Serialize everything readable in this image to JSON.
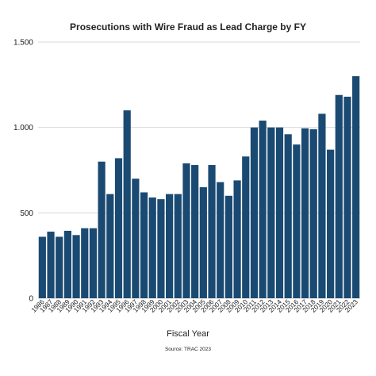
{
  "chart_data": {
    "type": "bar",
    "title": "Prosecutions with Wire Fraud as Lead Charge by FY",
    "xlabel": "Fiscal Year",
    "ylabel": "",
    "source": "Source: TRAC 2023",
    "ylim": [
      0,
      1500
    ],
    "yticks": [
      0,
      500,
      1000,
      1500
    ],
    "ytick_labels": [
      "0",
      "500",
      "1.000",
      "1.500"
    ],
    "grid": true,
    "categories": [
      "1986",
      "1987",
      "1988",
      "1989",
      "1990",
      "1991",
      "1992",
      "1993",
      "1994",
      "1995",
      "1996",
      "1997",
      "1998",
      "1999",
      "2000",
      "2001",
      "2002",
      "2003",
      "2004",
      "2005",
      "2006",
      "2007",
      "2008",
      "2009",
      "2010",
      "2011",
      "2012",
      "2013",
      "2014",
      "2015",
      "2016",
      "2017",
      "2018",
      "2019",
      "2020",
      "2021",
      "2022",
      "2023"
    ],
    "values": [
      360,
      390,
      360,
      395,
      370,
      410,
      410,
      800,
      610,
      820,
      1100,
      700,
      620,
      590,
      580,
      610,
      610,
      790,
      780,
      650,
      780,
      680,
      600,
      690,
      830,
      1000,
      1040,
      1000,
      1000,
      960,
      900,
      995,
      990,
      1080,
      870,
      1190,
      1180,
      1300
    ],
    "bar_color": "#1a4a72"
  }
}
